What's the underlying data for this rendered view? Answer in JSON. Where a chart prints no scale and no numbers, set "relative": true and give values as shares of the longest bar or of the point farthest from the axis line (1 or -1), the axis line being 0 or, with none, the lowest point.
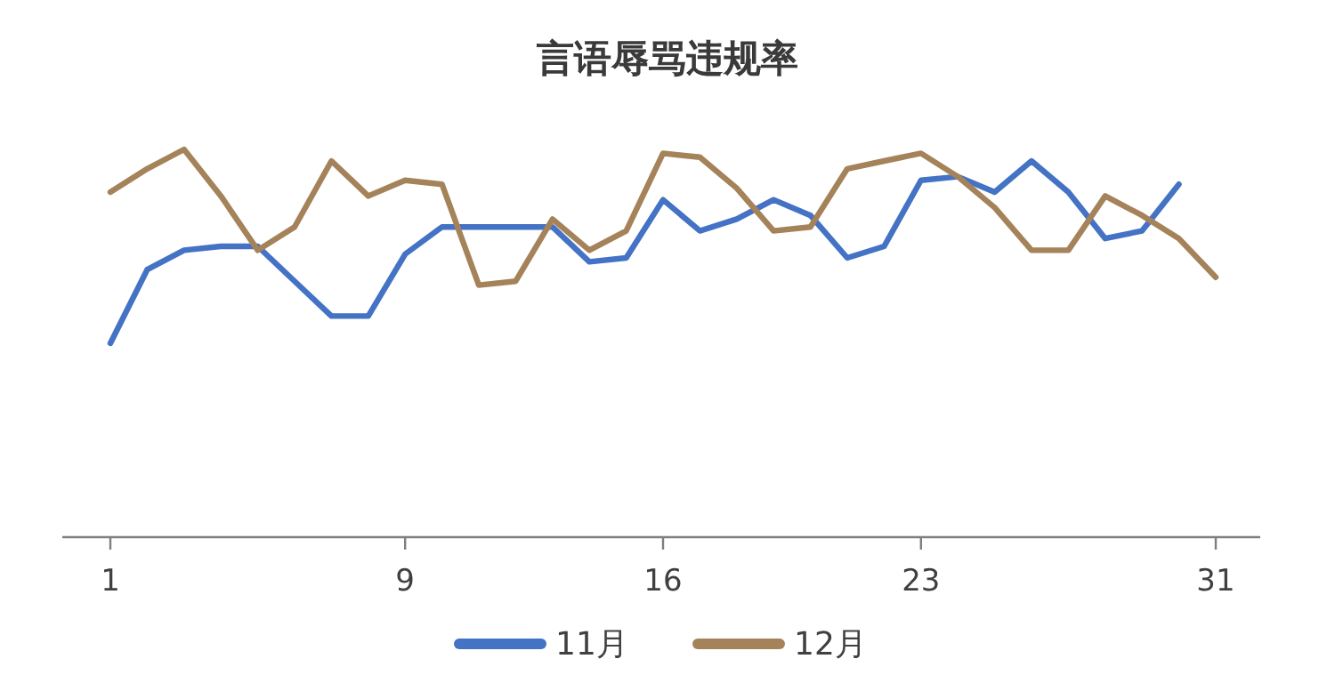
{
  "chart_data": {
    "type": "line",
    "title": "言语辱骂违规率",
    "relative": true,
    "legend": "bottom",
    "marker": "none",
    "line_style": "solid",
    "categories": [
      "1",
      null,
      null,
      null,
      null,
      null,
      null,
      null,
      "9",
      null,
      null,
      null,
      null,
      null,
      null,
      "16",
      null,
      null,
      null,
      null,
      null,
      null,
      "23",
      null,
      null,
      null,
      null,
      null,
      null,
      null,
      "31"
    ],
    "series": [
      {
        "name": "11月",
        "color": "#4472c4",
        "values": [
          0.5,
          0.69,
          0.74,
          0.75,
          0.75,
          0.66,
          0.57,
          0.57,
          0.73,
          0.8,
          0.8,
          0.8,
          0.8,
          0.71,
          0.72,
          0.87,
          0.79,
          0.82,
          0.87,
          0.83,
          0.72,
          0.75,
          0.92,
          0.93,
          0.89,
          0.97,
          0.89,
          0.77,
          0.79,
          0.91,
          null
        ]
      },
      {
        "name": "12月",
        "color": "#a5835a",
        "values": [
          0.89,
          0.95,
          1,
          0.88,
          0.74,
          0.8,
          0.97,
          0.88,
          0.92,
          0.91,
          0.65,
          0.66,
          0.82,
          0.74,
          0.79,
          0.99,
          0.98,
          0.9,
          0.79,
          0.8,
          0.95,
          0.97,
          0.99,
          0.93,
          0.85,
          0.74,
          0.74,
          0.88,
          0.83,
          0.77,
          0.67
        ]
      }
    ]
  }
}
